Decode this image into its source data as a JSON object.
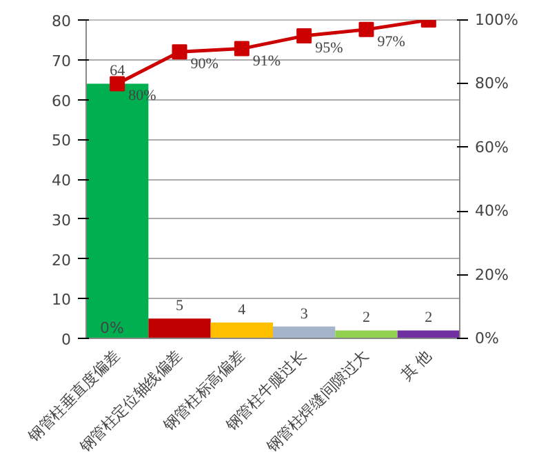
{
  "chart_data": {
    "type": "bar",
    "categories": [
      "钢管柱垂直度偏差",
      "钢管柱定位轴线偏差",
      "钢管柱标高偏差",
      "钢管柱牛腿过长",
      "钢管柱焊缝间隙过大",
      "其 他"
    ],
    "series": [
      {
        "colors": [
          "#00b050",
          "#c00000",
          "#ffc000",
          "#a5b4c8",
          "#92d050",
          "#7030a0"
        ],
        "values": [
          64,
          5,
          4,
          3,
          2,
          2
        ],
        "value_labels": [
          "64",
          "5",
          "4",
          "3",
          "2",
          "2"
        ]
      },
      {
        "type": "line",
        "axis": "y2",
        "color": "#cc0000",
        "values": [
          80,
          90,
          91,
          95,
          97,
          100
        ],
        "value_labels": [
          "80%",
          "90%",
          "91%",
          "95%",
          "97%",
          null
        ],
        "marker": "square"
      }
    ],
    "annotations": [
      "0%"
    ],
    "ylim": [
      0,
      80
    ],
    "yticks": [
      0,
      10,
      20,
      30,
      40,
      50,
      60,
      70,
      80
    ],
    "y2lim": [
      0,
      100
    ],
    "y2ticks": [
      {
        "value": 0,
        "label": "0%"
      },
      {
        "value": 20,
        "label": "20%"
      },
      {
        "value": 40,
        "label": "40%"
      },
      {
        "value": 60,
        "label": "60%"
      },
      {
        "value": 80,
        "label": "80%"
      },
      {
        "value": 100,
        "label": "100%"
      }
    ],
    "grid": "y"
  }
}
